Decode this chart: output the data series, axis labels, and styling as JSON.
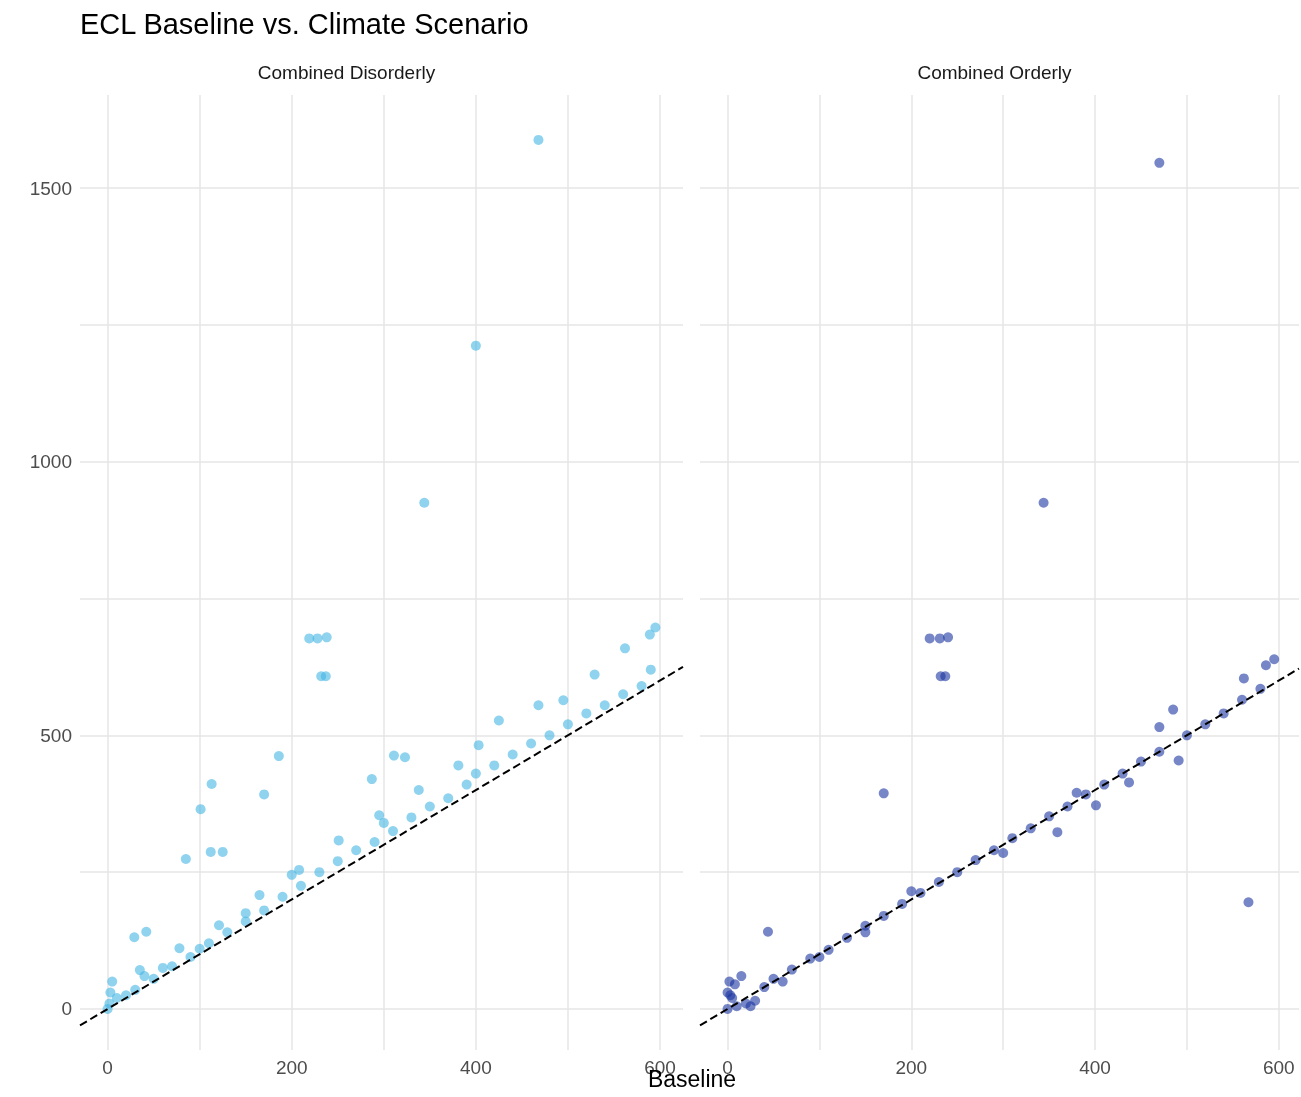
{
  "chart_data": [
    {
      "type": "scatter",
      "title": "ECL Baseline vs. Climate Scenario",
      "subtitle": "Combined Disorderly",
      "xlabel": "Baseline",
      "grid": true,
      "xlim": [
        -30,
        625
      ],
      "ylim": [
        -75,
        1670
      ],
      "xticks": [
        0,
        {
          "value": 100,
          "label": null
        },
        200,
        {
          "value": 300,
          "label": null
        },
        400,
        {
          "value": 500,
          "label": null
        },
        600
      ],
      "yticks": [
        0,
        {
          "value": 250,
          "label": null
        },
        500,
        {
          "value": 750,
          "label": null
        },
        1000,
        {
          "value": 1250,
          "label": null
        },
        1500
      ],
      "series": [
        {
          "marker": "circle",
          "color": "#45b6e5",
          "x": [
            468,
            400,
            344,
            219,
            228,
            238,
            232,
            237,
            186,
            113,
            101,
            170,
            85,
            112,
            125,
            42,
            29,
            595,
            589,
            562,
            529,
            311,
            323,
            287,
            495,
            468,
            425,
            403,
            381,
            338,
            295,
            251,
            208,
            165,
            121,
            78,
            35,
            0,
            2,
            3,
            5,
            10,
            20,
            30,
            50,
            70,
            90,
            110,
            130,
            150,
            170,
            190,
            210,
            230,
            250,
            270,
            290,
            310,
            330,
            350,
            370,
            390,
            400,
            420,
            440,
            460,
            480,
            500,
            520,
            540,
            560,
            580,
            590,
            300,
            200,
            150,
            100,
            60,
            40
          ],
          "values": [
            1588,
            1212,
            925,
            677,
            677,
            679,
            608,
            608,
            462,
            411,
            365,
            392,
            274,
            287,
            287,
            141,
            131,
            697,
            684,
            659,
            611,
            463,
            460,
            420,
            564,
            555,
            527,
            482,
            445,
            400,
            354,
            308,
            254,
            208,
            153,
            111,
            71,
            0,
            10,
            30,
            50,
            20,
            25,
            35,
            55,
            78,
            95,
            120,
            140,
            160,
            180,
            205,
            225,
            250,
            270,
            290,
            305,
            325,
            350,
            370,
            385,
            410,
            430,
            445,
            465,
            485,
            500,
            520,
            540,
            555,
            575,
            590,
            620,
            340,
            245,
            175,
            110,
            75,
            60
          ]
        },
        {
          "type": "line",
          "color": "#000000",
          "line_style": "dashed",
          "x": [
            -30,
            625
          ],
          "values": [
            -30,
            625
          ]
        }
      ]
    },
    {
      "type": "scatter",
      "subtitle": "Combined Orderly",
      "grid": true,
      "tick_labels": "x",
      "xlim": [
        -30,
        622
      ],
      "ylim": [
        -75,
        1670
      ],
      "xticks": [
        0,
        {
          "value": 100,
          "label": null
        },
        200,
        {
          "value": 300,
          "label": null
        },
        400,
        {
          "value": 500,
          "label": null
        },
        600
      ],
      "yticks": [
        0,
        {
          "value": 250,
          "label": null
        },
        500,
        {
          "value": 750,
          "label": null
        },
        1000,
        {
          "value": 1250,
          "label": null
        },
        1500
      ],
      "series": [
        {
          "marker": "circle",
          "color": "#1a35a0",
          "x": [
            470,
            344,
            220,
            231,
            240,
            232,
            237,
            170,
            44,
            567,
            595,
            586,
            562,
            485,
            470,
            491,
            437,
            401,
            359,
            0,
            2,
            5,
            10,
            20,
            30,
            40,
            0,
            3,
            8,
            15,
            25,
            50,
            70,
            90,
            110,
            130,
            150,
            170,
            190,
            210,
            230,
            250,
            270,
            290,
            310,
            330,
            350,
            370,
            390,
            410,
            430,
            450,
            470,
            500,
            520,
            540,
            560,
            580,
            200,
            150,
            100,
            60,
            300,
            380
          ],
          "values": [
            1546,
            925,
            677,
            677,
            679,
            608,
            608,
            394,
            141,
            195,
            639,
            628,
            604,
            547,
            515,
            454,
            414,
            372,
            323,
            0,
            50,
            20,
            5,
            10,
            15,
            40,
            30,
            25,
            45,
            60,
            5,
            55,
            72,
            92,
            108,
            130,
            152,
            170,
            192,
            212,
            232,
            250,
            272,
            290,
            312,
            330,
            352,
            370,
            392,
            410,
            430,
            452,
            470,
            500,
            520,
            540,
            565,
            585,
            215,
            140,
            95,
            50,
            285,
            395
          ]
        },
        {
          "type": "line",
          "color": "#000000",
          "line_style": "dashed",
          "x": [
            -30,
            622
          ],
          "values": [
            -30,
            622
          ]
        }
      ]
    }
  ]
}
